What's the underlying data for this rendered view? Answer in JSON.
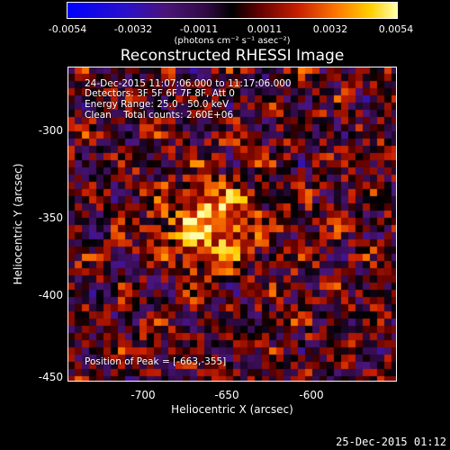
{
  "colorbar": {
    "ticks": [
      "-0.0054",
      "-0.0032",
      "-0.0011",
      "0.0011",
      "0.0032",
      "0.0054"
    ],
    "unit": "(photons cm⁻² s⁻¹ asec⁻²)"
  },
  "title": "Reconstructed RHESSI Image",
  "info": {
    "line1": "24-Dec-2015 11:07:06.000 to 11:17:06.000",
    "line2": "Detectors: 3F 5F 6F 7F 8F, Att 0",
    "line3": "Energy Range: 25.0 - 50.0 keV",
    "line4": "Clean    Total counts: 2.60E+06",
    "peak": "Position of Peak = [-663,-355]"
  },
  "axes": {
    "xlabel": "Heliocentric X (arcsec)",
    "ylabel": "Heliocentric Y (arcsec)",
    "xticks": [
      "-700",
      "-650",
      "-600"
    ],
    "yticks": [
      "-300",
      "-350",
      "-400",
      "-450"
    ]
  },
  "footer": {
    "timestamp": "25-Dec-2015 01:12"
  },
  "image": {
    "peak_x": -663,
    "peak_y": -355
  }
}
